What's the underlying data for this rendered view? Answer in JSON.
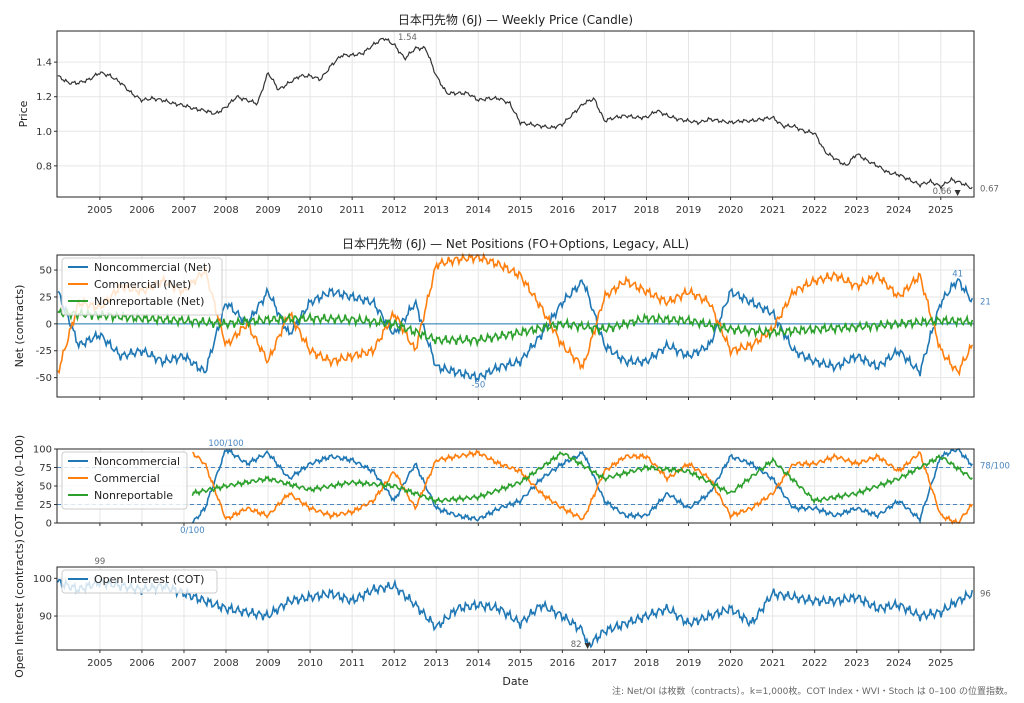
{
  "colors": {
    "noncommercial": "#1f77b4",
    "commercial": "#ff7f0e",
    "nonreportable": "#2ca02c",
    "price": "#333333",
    "oi": "#1f77b4"
  },
  "footnote": "注: Net/OI は枚数（contracts）。k=1,000枚。COT Index・WVI・Stoch は 0–100 の位置指数。",
  "chart_data": [
    {
      "type": "line",
      "title": "日本円先物 (6J) — Weekly Price (Candle)",
      "xlabel": "",
      "ylabel": "Price",
      "xlim": [
        2003.98,
        2025.79
      ],
      "ylim": [
        0.62,
        1.58
      ],
      "xticks": [
        "2005",
        "2006",
        "2007",
        "2008",
        "2009",
        "2010",
        "2011",
        "2012",
        "2013",
        "2014",
        "2015",
        "2016",
        "2017",
        "2018",
        "2019",
        "2020",
        "2021",
        "2022",
        "2023",
        "2024",
        "2025"
      ],
      "yticks": [
        "0.8",
        "1.0",
        "1.2",
        "1.4"
      ],
      "annotations": [
        {
          "x": 2011.9,
          "y": 1.54,
          "text": "1.54"
        },
        {
          "x": 2025.4,
          "y": 0.66,
          "text": "0.66"
        },
        {
          "x": 2025.79,
          "y": 0.67,
          "text": "0.67"
        }
      ],
      "series": [
        {
          "name": "Price",
          "x": [
            2004,
            2004.25,
            2004.5,
            2004.75,
            2005,
            2005.25,
            2005.5,
            2005.75,
            2006,
            2006.25,
            2006.5,
            2006.75,
            2007,
            2007.25,
            2007.5,
            2007.75,
            2008,
            2008.25,
            2008.5,
            2008.75,
            2009,
            2009.25,
            2009.5,
            2009.75,
            2010,
            2010.25,
            2010.5,
            2010.75,
            2011,
            2011.25,
            2011.5,
            2011.75,
            2012,
            2012.25,
            2012.5,
            2012.75,
            2013,
            2013.25,
            2013.5,
            2013.75,
            2014,
            2014.25,
            2014.5,
            2014.75,
            2015,
            2015.25,
            2015.5,
            2015.75,
            2016,
            2016.25,
            2016.5,
            2016.75,
            2017,
            2017.25,
            2017.5,
            2017.75,
            2018,
            2018.25,
            2018.5,
            2018.75,
            2019,
            2019.25,
            2019.5,
            2019.75,
            2020,
            2020.25,
            2020.5,
            2020.75,
            2021,
            2021.25,
            2021.5,
            2021.75,
            2022,
            2022.25,
            2022.5,
            2022.75,
            2023,
            2023.25,
            2023.5,
            2023.75,
            2024,
            2024.25,
            2024.5,
            2024.75,
            2025,
            2025.25,
            2025.5,
            2025.75
          ],
          "y": [
            1.32,
            1.28,
            1.28,
            1.3,
            1.34,
            1.32,
            1.28,
            1.22,
            1.18,
            1.19,
            1.18,
            1.16,
            1.15,
            1.13,
            1.12,
            1.1,
            1.14,
            1.2,
            1.18,
            1.16,
            1.34,
            1.24,
            1.28,
            1.32,
            1.32,
            1.3,
            1.38,
            1.44,
            1.44,
            1.45,
            1.5,
            1.54,
            1.5,
            1.42,
            1.48,
            1.48,
            1.32,
            1.22,
            1.22,
            1.22,
            1.18,
            1.19,
            1.19,
            1.16,
            1.05,
            1.04,
            1.03,
            1.02,
            1.04,
            1.1,
            1.16,
            1.19,
            1.06,
            1.08,
            1.09,
            1.08,
            1.08,
            1.12,
            1.09,
            1.07,
            1.06,
            1.05,
            1.07,
            1.06,
            1.05,
            1.06,
            1.06,
            1.07,
            1.08,
            1.03,
            1.03,
            1.0,
            0.99,
            0.88,
            0.84,
            0.8,
            0.87,
            0.83,
            0.8,
            0.76,
            0.75,
            0.72,
            0.69,
            0.71,
            0.68,
            0.72,
            0.7,
            0.67
          ]
        }
      ]
    },
    {
      "type": "line",
      "title": "日本円先物 (6J) — Net Positions (FO+Options, Legacy, ALL)",
      "xlabel": "",
      "ylabel": "Net (contracts)",
      "xlim": [
        2003.98,
        2025.79
      ],
      "ylim": [
        -68,
        64
      ],
      "yticks": [
        "-50",
        "-25",
        "0",
        "25",
        "50"
      ],
      "legend": "top-left",
      "annotations": [
        {
          "x": 2014.0,
          "y": -50,
          "text": "-50"
        },
        {
          "x": 2025.4,
          "y": 41,
          "text": "41"
        },
        {
          "x": 2025.79,
          "y": 21,
          "text": "21"
        }
      ],
      "series": [
        {
          "name": "Noncommercial (Net)",
          "x": [
            2004,
            2004.5,
            2005,
            2005.5,
            2006,
            2006.5,
            2007,
            2007.5,
            2008,
            2008.5,
            2009,
            2009.5,
            2010,
            2010.5,
            2011,
            2011.5,
            2012,
            2012.5,
            2013,
            2013.5,
            2014,
            2014.5,
            2015,
            2015.5,
            2016,
            2016.5,
            2017,
            2017.5,
            2018,
            2018.5,
            2019,
            2019.5,
            2020,
            2020.5,
            2021,
            2021.5,
            2022,
            2022.5,
            2023,
            2023.5,
            2024,
            2024.5,
            2025,
            2025.4,
            2025.75
          ],
          "y": [
            30,
            -20,
            -10,
            -30,
            -25,
            -35,
            -30,
            -45,
            20,
            0,
            30,
            -10,
            20,
            30,
            25,
            20,
            -10,
            20,
            -40,
            -45,
            -50,
            -40,
            -35,
            -10,
            20,
            40,
            -20,
            -35,
            -35,
            -20,
            -30,
            -20,
            30,
            20,
            10,
            -25,
            -35,
            -40,
            -30,
            -40,
            -25,
            -45,
            20,
            41,
            21
          ]
        },
        {
          "name": "Commercial (Net)",
          "x": [
            2004,
            2004.5,
            2005,
            2005.5,
            2006,
            2006.5,
            2007,
            2007.5,
            2008,
            2008.5,
            2009,
            2009.5,
            2010,
            2010.5,
            2011,
            2011.5,
            2012,
            2012.5,
            2013,
            2013.5,
            2014,
            2014.5,
            2015,
            2015.5,
            2016,
            2016.5,
            2017,
            2017.5,
            2018,
            2018.5,
            2019,
            2019.5,
            2020,
            2020.5,
            2021,
            2021.5,
            2022,
            2022.5,
            2023,
            2023.5,
            2024,
            2024.5,
            2025,
            2025.4,
            2025.75
          ],
          "y": [
            -45,
            20,
            15,
            35,
            30,
            40,
            30,
            50,
            -20,
            0,
            -35,
            10,
            -25,
            -35,
            -30,
            -25,
            10,
            -25,
            55,
            60,
            62,
            55,
            45,
            15,
            -20,
            -40,
            25,
            40,
            30,
            20,
            30,
            20,
            -25,
            -20,
            -5,
            30,
            40,
            45,
            35,
            45,
            25,
            45,
            -25,
            -45,
            -20
          ]
        },
        {
          "name": "Nonreportable (Net)",
          "x": [
            2004,
            2005,
            2006,
            2007,
            2008,
            2009,
            2010,
            2011,
            2012,
            2013,
            2014,
            2015,
            2016,
            2017,
            2018,
            2019,
            2020,
            2021,
            2022,
            2023,
            2024,
            2025,
            2025.75
          ],
          "y": [
            10,
            8,
            5,
            3,
            0,
            4,
            5,
            4,
            0,
            -15,
            -15,
            -8,
            0,
            -5,
            5,
            3,
            -5,
            -8,
            -5,
            -3,
            0,
            3,
            2
          ]
        }
      ]
    },
    {
      "type": "line",
      "title": "",
      "xlabel": "",
      "ylabel": "COT Index (0–100)",
      "xlim": [
        2003.98,
        2025.79
      ],
      "ylim": [
        0,
        100
      ],
      "yticks": [
        "0",
        "25",
        "50",
        "75",
        "100"
      ],
      "reference_lines": [
        25,
        75
      ],
      "legend": "top-left",
      "annotations": [
        {
          "x": 2008.0,
          "y": 100,
          "text": "100/100"
        },
        {
          "x": 2007.2,
          "y": 0,
          "text": "0/100"
        },
        {
          "x": 2025.79,
          "y": 78,
          "text": "78/100"
        }
      ],
      "series": [
        {
          "name": "Noncommercial",
          "x": [
            2007.2,
            2007.5,
            2008,
            2008.5,
            2009,
            2009.5,
            2010,
            2010.5,
            2011,
            2011.5,
            2012,
            2012.5,
            2013,
            2013.5,
            2014,
            2014.5,
            2015,
            2015.5,
            2016,
            2016.5,
            2017,
            2017.5,
            2018,
            2018.5,
            2019,
            2019.5,
            2020,
            2020.5,
            2021,
            2021.5,
            2022,
            2022.5,
            2023,
            2023.5,
            2024,
            2024.5,
            2025,
            2025.4,
            2025.75
          ],
          "y": [
            0,
            20,
            100,
            80,
            95,
            60,
            80,
            90,
            85,
            70,
            30,
            80,
            20,
            10,
            5,
            20,
            30,
            60,
            80,
            95,
            30,
            10,
            10,
            40,
            20,
            40,
            90,
            80,
            60,
            20,
            20,
            10,
            20,
            10,
            30,
            5,
            90,
            100,
            78
          ]
        },
        {
          "name": "Commercial",
          "x": [
            2007.2,
            2007.5,
            2008,
            2008.5,
            2009,
            2009.5,
            2010,
            2010.5,
            2011,
            2011.5,
            2012,
            2012.5,
            2013,
            2013.5,
            2014,
            2014.5,
            2015,
            2015.5,
            2016,
            2016.5,
            2017,
            2017.5,
            2018,
            2018.5,
            2019,
            2019.5,
            2020,
            2020.5,
            2021,
            2021.5,
            2022,
            2022.5,
            2023,
            2023.5,
            2024,
            2024.5,
            2025,
            2025.4,
            2025.75
          ],
          "y": [
            95,
            80,
            5,
            20,
            10,
            40,
            20,
            10,
            15,
            30,
            70,
            20,
            85,
            90,
            95,
            80,
            70,
            40,
            20,
            5,
            70,
            90,
            90,
            60,
            80,
            60,
            10,
            20,
            40,
            80,
            80,
            90,
            80,
            90,
            70,
            95,
            10,
            0,
            25
          ]
        },
        {
          "name": "Nonreportable",
          "x": [
            2007.2,
            2008,
            2009,
            2010,
            2011,
            2012,
            2013,
            2014,
            2015,
            2016,
            2017,
            2018,
            2019,
            2020,
            2021,
            2022,
            2023,
            2024,
            2025,
            2025.75
          ],
          "y": [
            40,
            50,
            60,
            45,
            55,
            50,
            30,
            35,
            55,
            95,
            60,
            75,
            70,
            40,
            85,
            30,
            40,
            60,
            90,
            60
          ]
        }
      ]
    },
    {
      "type": "line",
      "title": "",
      "xlabel": "Date",
      "ylabel": "Open Interest (contracts)",
      "xlim": [
        2003.98,
        2025.79
      ],
      "ylim": [
        81,
        103
      ],
      "xticks": [
        "2005",
        "2006",
        "2007",
        "2008",
        "2009",
        "2010",
        "2011",
        "2012",
        "2013",
        "2014",
        "2015",
        "2016",
        "2017",
        "2018",
        "2019",
        "2020",
        "2021",
        "2022",
        "2023",
        "2024",
        "2025"
      ],
      "yticks": [
        "90",
        "100"
      ],
      "legend": "top-left",
      "annotations": [
        {
          "x": 2005.0,
          "y": 99,
          "text": "99"
        },
        {
          "x": 2016.6,
          "y": 82,
          "text": "82"
        },
        {
          "x": 2025.79,
          "y": 96,
          "text": "96"
        }
      ],
      "series": [
        {
          "name": "Open Interest (COT)",
          "x": [
            2004,
            2004.5,
            2005,
            2005.5,
            2006,
            2006.5,
            2007,
            2007.5,
            2008,
            2008.5,
            2009,
            2009.5,
            2010,
            2010.5,
            2011,
            2011.5,
            2012,
            2012.5,
            2013,
            2013.5,
            2014,
            2014.5,
            2015,
            2015.5,
            2016,
            2016.5,
            2016.6,
            2017,
            2017.5,
            2018,
            2018.5,
            2019,
            2019.5,
            2020,
            2020.5,
            2021,
            2021.5,
            2022,
            2022.5,
            2023,
            2023.5,
            2024,
            2024.5,
            2025,
            2025.4,
            2025.75
          ],
          "y": [
            99,
            97,
            99,
            98,
            97,
            98,
            96,
            94,
            92,
            91,
            90,
            94,
            95,
            96,
            94,
            97,
            98,
            93,
            87,
            92,
            93,
            92,
            88,
            93,
            90,
            86,
            82,
            86,
            88,
            90,
            92,
            88,
            90,
            92,
            88,
            96,
            95,
            94,
            94,
            95,
            92,
            93,
            90,
            91,
            94,
            96
          ]
        }
      ]
    }
  ]
}
